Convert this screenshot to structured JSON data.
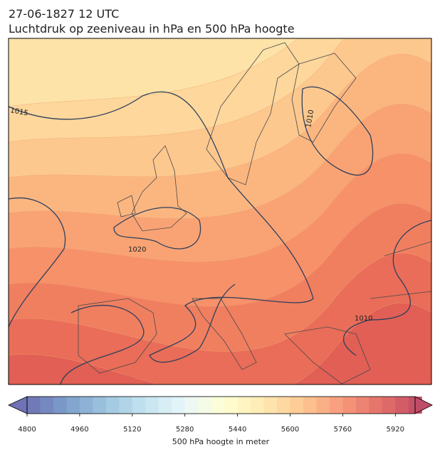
{
  "header": {
    "title_line1": "27-06-1827 12 UTC",
    "title_line2": "Luchtdruk op zeeniveau in hPa en 500 hPa hoogte"
  },
  "map": {
    "isobar_labels": [
      1015,
      1020,
      1010,
      1010
    ]
  },
  "colorbar": {
    "label": "500 hPa hoogte in meter",
    "min": 4800,
    "max": 5980,
    "step": 40,
    "ticks": [
      4800,
      4960,
      5120,
      5280,
      5440,
      5600,
      5760,
      5920
    ]
  }
}
